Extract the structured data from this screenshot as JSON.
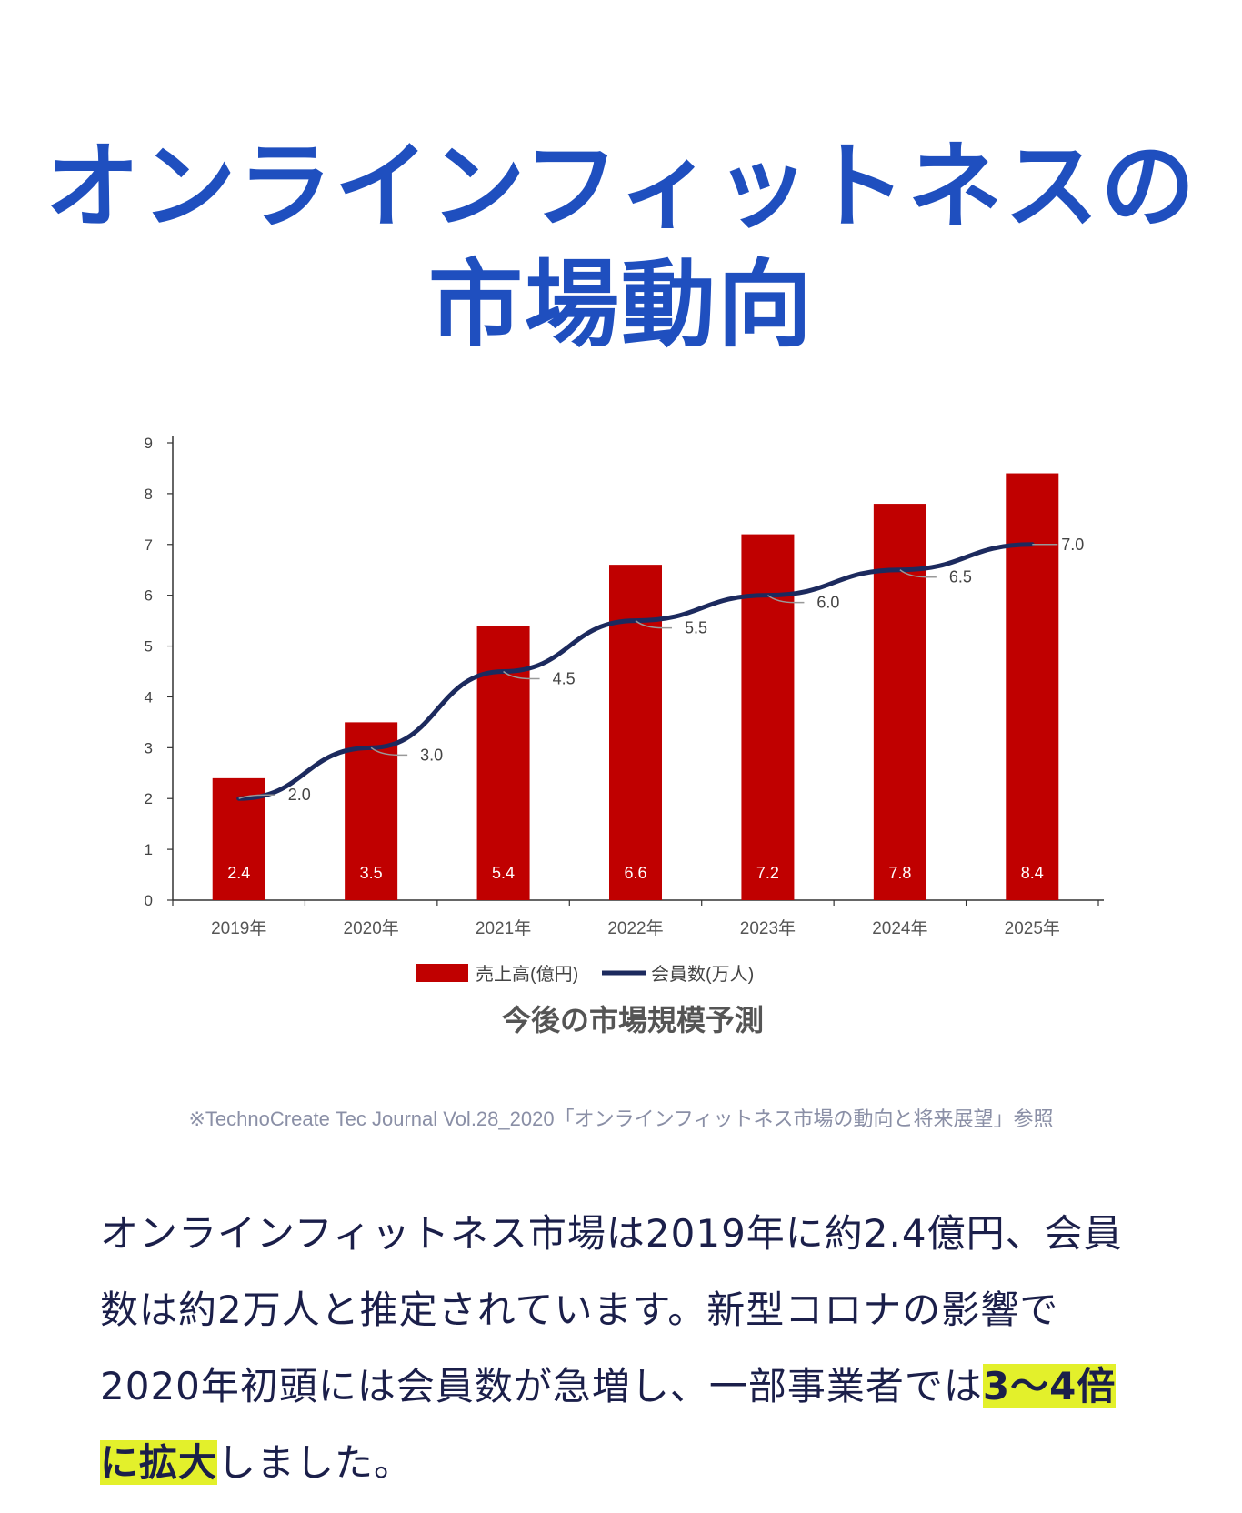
{
  "heading": {
    "line1": "オンラインフィットネスの",
    "line2": "市場動向"
  },
  "chart_data": {
    "type": "bar",
    "title": "今後の市場規模予測",
    "categories": [
      "2019年",
      "2020年",
      "2021年",
      "2022年",
      "2023年",
      "2024年",
      "2025年"
    ],
    "ylim": [
      0,
      9
    ],
    "yticks": [
      "0",
      "1",
      "2",
      "3",
      "4",
      "5",
      "6",
      "7",
      "8",
      "9"
    ],
    "series": [
      {
        "name": "売上高(億円)",
        "kind": "bar",
        "color": "#c00000",
        "values": [
          2.4,
          3.5,
          5.4,
          6.6,
          7.2,
          7.8,
          8.4
        ],
        "labels": [
          "2.4",
          "3.5",
          "5.4",
          "6.6",
          "7.2",
          "7.8",
          "8.4"
        ]
      },
      {
        "name": "会員数(万人)",
        "kind": "line",
        "color": "#1c2a5e",
        "values": [
          2.0,
          3.0,
          4.5,
          5.5,
          6.0,
          6.5,
          7.0
        ],
        "labels": [
          "2.0",
          "3.0",
          "4.5",
          "5.5",
          "6.0",
          "6.5",
          "7.0"
        ]
      }
    ],
    "legend_position": "bottom",
    "grid": false
  },
  "source_note": "※TechnoCreate Tec Journal Vol.28_2020「オンラインフィットネス市場の動向と将来展望」参照",
  "body_text": {
    "part1": "オンラインフィットネス市場は2019年に約2.4億円、会員数は約2万人と推定されています。新型コロナの影響で2020年初頭には会員数が急増し、一部事業者では",
    "highlight": "3〜4倍に拡大",
    "part2": "しました。"
  }
}
